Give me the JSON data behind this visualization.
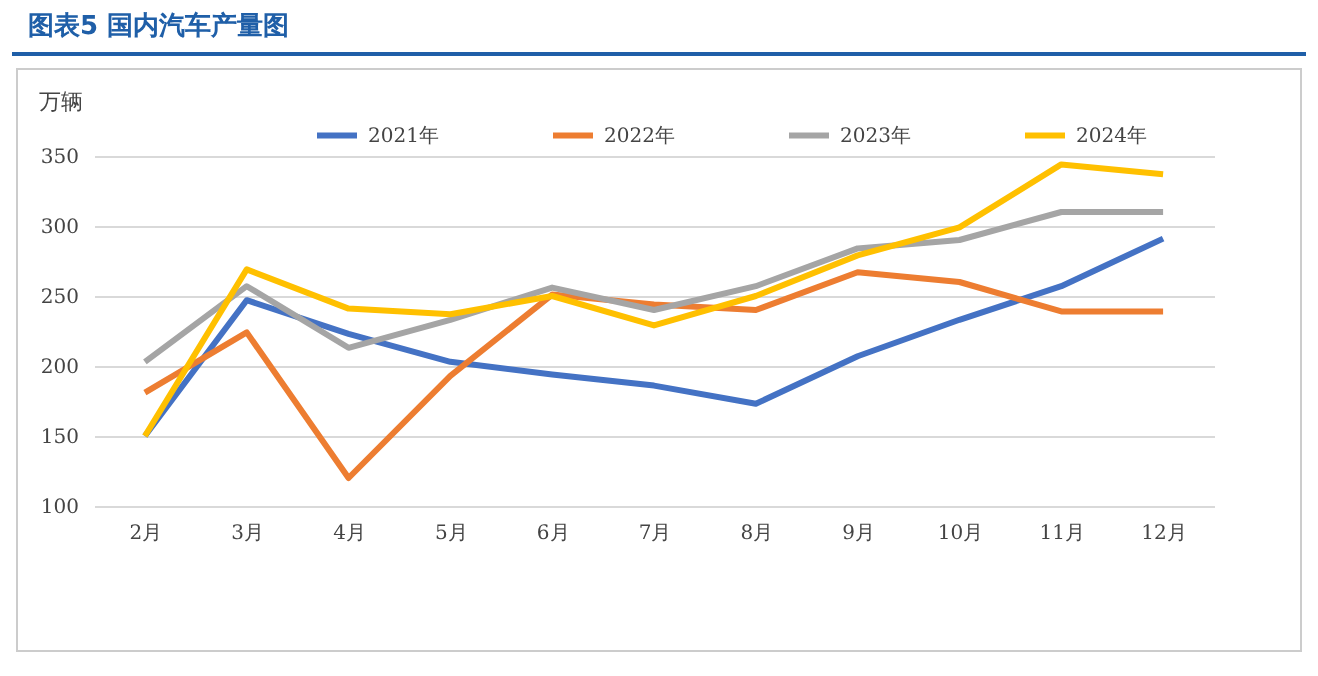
{
  "chart_data": {
    "type": "line",
    "title": "图表5  国内汽车产量图",
    "ylabel": "万辆",
    "categories": [
      "2月",
      "3月",
      "4月",
      "5月",
      "6月",
      "7月",
      "8月",
      "9月",
      "10月",
      "11月",
      "12月"
    ],
    "series": [
      {
        "name": "2021年",
        "color": "#4472c4",
        "values": [
          150,
          247,
          223,
          203,
          194,
          186,
          173,
          207,
          233,
          257,
          291
        ]
      },
      {
        "name": "2022年",
        "color": "#ed7d31",
        "values": [
          181,
          224,
          120,
          193,
          251,
          244,
          240,
          267,
          260,
          239,
          239
        ]
      },
      {
        "name": "2023年",
        "color": "#a5a5a5",
        "values": [
          203,
          257,
          213,
          233,
          256,
          240,
          257,
          284,
          290,
          310,
          310
        ]
      },
      {
        "name": "2024年",
        "color": "#ffc000",
        "values": [
          150,
          269,
          241,
          237,
          250,
          229,
          250,
          279,
          299,
          344,
          337
        ]
      }
    ],
    "ylim": [
      100,
      350
    ],
    "yticks": [
      100,
      150,
      200,
      250,
      300,
      350
    ],
    "grid": "y",
    "legend": "top",
    "line_style": "solid",
    "marker": "none"
  }
}
